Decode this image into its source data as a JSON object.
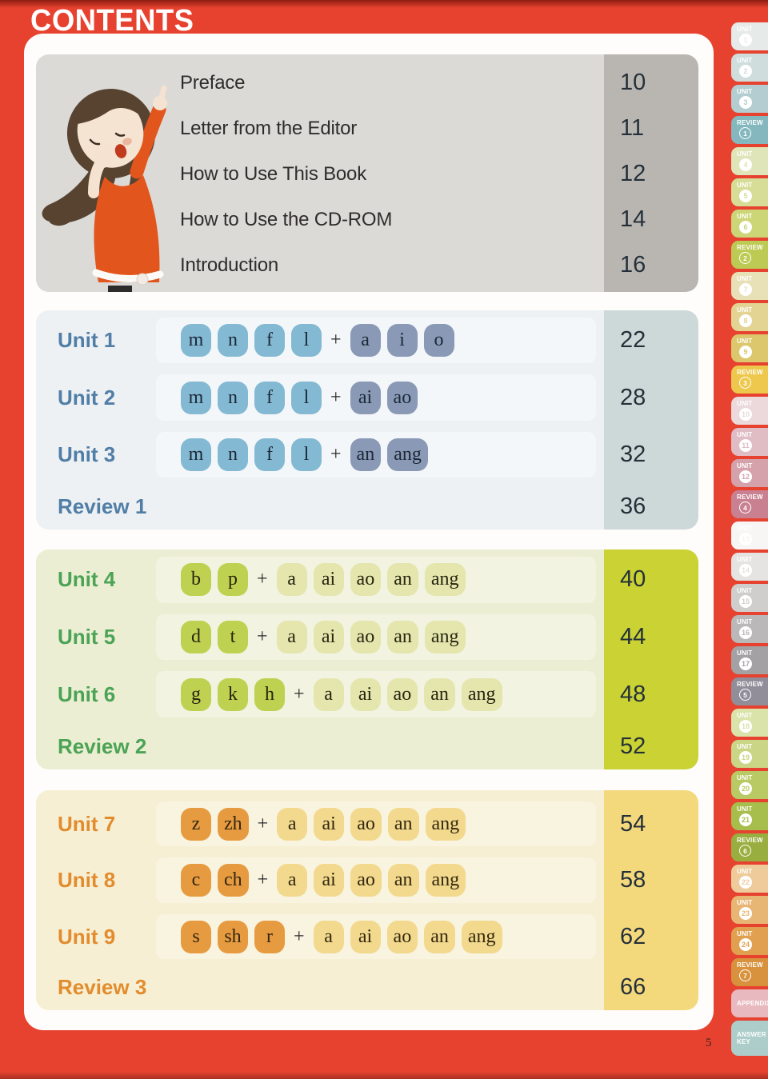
{
  "page": {
    "title": "CONTENTS",
    "folio": "5"
  },
  "plus_sign": "+",
  "colors": {
    "background_red": "#e74230",
    "container_white": "#fefdfb",
    "gray_panel": "#dcdad7",
    "gray_numcol": "#b9b6b2",
    "number_text": "#243039"
  },
  "front_matter": {
    "items": [
      {
        "label": "Preface",
        "page": "10"
      },
      {
        "label": "Letter from the Editor",
        "page": "11"
      },
      {
        "label": "How to Use This Book",
        "page": "12"
      },
      {
        "label": "How to Use the CD-ROM",
        "page": "14"
      },
      {
        "label": "Introduction",
        "page": "16"
      }
    ]
  },
  "sections": [
    {
      "name": "units-1-3",
      "label_color": "#517ea6",
      "panel_bg": "#edf1f4",
      "col_bg": "#cdd9d8",
      "chip_initial_bg": "#84b9d4",
      "chip_final_bg": "#8a99b6",
      "chip_text": "#1c2836",
      "rows": [
        {
          "label": "Unit 1",
          "initials": [
            "m",
            "n",
            "f",
            "l"
          ],
          "finals": [
            "a",
            "i",
            "o"
          ],
          "page": "22"
        },
        {
          "label": "Unit 2",
          "initials": [
            "m",
            "n",
            "f",
            "l"
          ],
          "finals": [
            "ai",
            "ao"
          ],
          "page": "28"
        },
        {
          "label": "Unit 3",
          "initials": [
            "m",
            "n",
            "f",
            "l"
          ],
          "finals": [
            "an",
            "ang"
          ],
          "page": "32"
        },
        {
          "label": "Review 1",
          "page": "36"
        }
      ]
    },
    {
      "name": "units-4-6",
      "label_color": "#4ba355",
      "panel_bg": "#eceed3",
      "col_bg": "#cad234",
      "chip_initial_bg": "#bfd150",
      "chip_final_bg": "#e4e6ad",
      "chip_text": "#26250f",
      "rows": [
        {
          "label": "Unit 4",
          "initials": [
            "b",
            "p"
          ],
          "finals": [
            "a",
            "ai",
            "ao",
            "an",
            "ang"
          ],
          "page": "40"
        },
        {
          "label": "Unit 5",
          "initials": [
            "d",
            "t"
          ],
          "finals": [
            "a",
            "ai",
            "ao",
            "an",
            "ang"
          ],
          "page": "44"
        },
        {
          "label": "Unit 6",
          "initials": [
            "g",
            "k",
            "h"
          ],
          "finals": [
            "a",
            "ai",
            "ao",
            "an",
            "ang"
          ],
          "page": "48"
        },
        {
          "label": "Review 2",
          "page": "52"
        }
      ]
    },
    {
      "name": "units-7-9",
      "label_color": "#e28c2d",
      "panel_bg": "#f6efd3",
      "col_bg": "#f4d87c",
      "chip_initial_bg": "#e79b41",
      "chip_final_bg": "#f2d98e",
      "chip_text": "#33270e",
      "rows": [
        {
          "label": "Unit 7",
          "initials": [
            "z",
            "zh"
          ],
          "finals": [
            "a",
            "ai",
            "ao",
            "an",
            "ang"
          ],
          "page": "54"
        },
        {
          "label": "Unit 8",
          "initials": [
            "c",
            "ch"
          ],
          "finals": [
            "a",
            "ai",
            "ao",
            "an",
            "ang"
          ],
          "page": "58"
        },
        {
          "label": "Unit 9",
          "initials": [
            "s",
            "sh",
            "r"
          ],
          "finals": [
            "a",
            "ai",
            "ao",
            "an",
            "ang"
          ],
          "page": "62"
        },
        {
          "label": "Review 3",
          "page": "66"
        }
      ]
    }
  ],
  "side_tabs": [
    {
      "type": "unit",
      "label": "UNIT",
      "number": "1",
      "color": "#e6eae9"
    },
    {
      "type": "unit",
      "label": "UNIT",
      "number": "2",
      "color": "#cfdedd"
    },
    {
      "type": "unit",
      "label": "UNIT",
      "number": "3",
      "color": "#b4cdd1"
    },
    {
      "type": "review",
      "label": "REVIEW",
      "number": "1",
      "color": "#84b8be"
    },
    {
      "type": "unit",
      "label": "UNIT",
      "number": "4",
      "color": "#e0e5b9"
    },
    {
      "type": "unit",
      "label": "UNIT",
      "number": "5",
      "color": "#d7dd97"
    },
    {
      "type": "unit",
      "label": "UNIT",
      "number": "6",
      "color": "#ccd676"
    },
    {
      "type": "review",
      "label": "REVIEW",
      "number": "2",
      "color": "#bdca54"
    },
    {
      "type": "unit",
      "label": "UNIT",
      "number": "7",
      "color": "#e8e0b7"
    },
    {
      "type": "unit",
      "label": "UNIT",
      "number": "8",
      "color": "#e3d494"
    },
    {
      "type": "unit",
      "label": "UNIT",
      "number": "9",
      "color": "#dcc76d"
    },
    {
      "type": "review",
      "label": "REVIEW",
      "number": "3",
      "color": "#edc84d"
    },
    {
      "type": "unit",
      "label": "UNIT",
      "number": "10",
      "color": "#ebd9db"
    },
    {
      "type": "unit",
      "label": "UNIT",
      "number": "11",
      "color": "#e0bdc4"
    },
    {
      "type": "unit",
      "label": "UNIT",
      "number": "12",
      "color": "#d5a2ac"
    },
    {
      "type": "review",
      "label": "REVIEW",
      "number": "4",
      "color": "#c98191"
    },
    {
      "type": "unit",
      "label": "UNIT",
      "number": "13",
      "color": "#f7f6f4"
    },
    {
      "type": "unit",
      "label": "UNIT",
      "number": "14",
      "color": "#e6e4e2"
    },
    {
      "type": "unit",
      "label": "UNIT",
      "number": "15",
      "color": "#d0cecd"
    },
    {
      "type": "unit",
      "label": "UNIT",
      "number": "16",
      "color": "#bab8b8"
    },
    {
      "type": "unit",
      "label": "UNIT",
      "number": "17",
      "color": "#a3a1a3"
    },
    {
      "type": "review",
      "label": "REVIEW",
      "number": "5",
      "color": "#918e9a"
    },
    {
      "type": "unit",
      "label": "UNIT",
      "number": "18",
      "color": "#dae3aa"
    },
    {
      "type": "unit",
      "label": "UNIT",
      "number": "19",
      "color": "#cad586"
    },
    {
      "type": "unit",
      "label": "UNIT",
      "number": "20",
      "color": "#b9ca64"
    },
    {
      "type": "unit",
      "label": "UNIT",
      "number": "21",
      "color": "#a7bd4c"
    },
    {
      "type": "review",
      "label": "REVIEW",
      "number": "6",
      "color": "#98ae3f"
    },
    {
      "type": "unit",
      "label": "UNIT",
      "number": "22",
      "color": "#efcb9b"
    },
    {
      "type": "unit",
      "label": "UNIT",
      "number": "23",
      "color": "#e8b674"
    },
    {
      "type": "unit",
      "label": "UNIT",
      "number": "24",
      "color": "#e0a050"
    },
    {
      "type": "review",
      "label": "REVIEW",
      "number": "7",
      "color": "#d8913c"
    },
    {
      "type": "text",
      "label": "APPENDIX",
      "color": "#e8bac0"
    },
    {
      "type": "text2",
      "label": "ANSWER",
      "label2": "KEY",
      "color": "#accdc9"
    }
  ]
}
